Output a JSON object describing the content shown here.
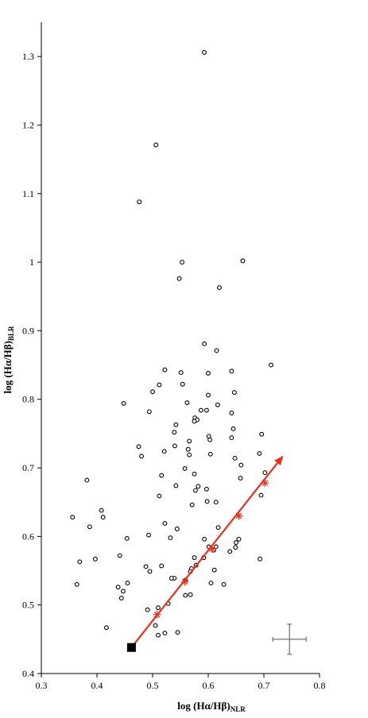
{
  "chart_data": {
    "type": "scatter",
    "xlabel": {
      "main": "log (Hα/Hβ)",
      "sub": "NLR"
    },
    "ylabel": {
      "main": "log (Hα/Hβ)",
      "sub": "BLR"
    },
    "xlim": [
      0.3,
      0.8
    ],
    "ylim": [
      0.4,
      1.35
    ],
    "xticks": [
      "0.3",
      "0.4",
      "0.5",
      "0.6",
      "0.7",
      "0.8"
    ],
    "yticks": [
      "0.4",
      "0.5",
      "0.6",
      "0.7",
      "0.8",
      "0.9",
      "1",
      "1.1",
      "1.2",
      "1.3"
    ],
    "grid": false,
    "series": [
      {
        "marker": "open-circle",
        "color": "#000000",
        "points": [
          [
            0.593,
            1.306
          ],
          [
            0.506,
            1.171
          ],
          [
            0.476,
            1.088
          ],
          [
            0.553,
            1.0
          ],
          [
            0.662,
            1.002
          ],
          [
            0.548,
            0.976
          ],
          [
            0.62,
            0.963
          ],
          [
            0.593,
            0.881
          ],
          [
            0.615,
            0.871
          ],
          [
            0.713,
            0.85
          ],
          [
            0.522,
            0.843
          ],
          [
            0.551,
            0.839
          ],
          [
            0.6,
            0.838
          ],
          [
            0.642,
            0.841
          ],
          [
            0.512,
            0.821
          ],
          [
            0.554,
            0.822
          ],
          [
            0.5,
            0.811
          ],
          [
            0.647,
            0.81
          ],
          [
            0.6,
            0.806
          ],
          [
            0.448,
            0.794
          ],
          [
            0.562,
            0.795
          ],
          [
            0.617,
            0.792
          ],
          [
            0.494,
            0.782
          ],
          [
            0.587,
            0.784
          ],
          [
            0.597,
            0.784
          ],
          [
            0.642,
            0.78
          ],
          [
            0.576,
            0.773
          ],
          [
            0.58,
            0.77
          ],
          [
            0.575,
            0.768
          ],
          [
            0.542,
            0.763
          ],
          [
            0.539,
            0.752
          ],
          [
            0.645,
            0.757
          ],
          [
            0.696,
            0.749
          ],
          [
            0.601,
            0.746
          ],
          [
            0.603,
            0.741
          ],
          [
            0.642,
            0.744
          ],
          [
            0.566,
            0.739
          ],
          [
            0.54,
            0.732
          ],
          [
            0.475,
            0.731
          ],
          [
            0.564,
            0.727
          ],
          [
            0.521,
            0.724
          ],
          [
            0.566,
            0.719
          ],
          [
            0.604,
            0.72
          ],
          [
            0.692,
            0.721
          ],
          [
            0.48,
            0.717
          ],
          [
            0.648,
            0.714
          ],
          [
            0.659,
            0.704
          ],
          [
            0.558,
            0.699
          ],
          [
            0.575,
            0.691
          ],
          [
            0.702,
            0.693
          ],
          [
            0.516,
            0.689
          ],
          [
            0.658,
            0.685
          ],
          [
            0.382,
            0.682
          ],
          [
            0.542,
            0.674
          ],
          [
            0.582,
            0.673
          ],
          [
            0.577,
            0.667
          ],
          [
            0.597,
            0.669
          ],
          [
            0.695,
            0.66
          ],
          [
            0.614,
            0.65
          ],
          [
            0.512,
            0.659
          ],
          [
            0.571,
            0.646
          ],
          [
            0.598,
            0.651
          ],
          [
            0.408,
            0.638
          ],
          [
            0.411,
            0.628
          ],
          [
            0.356,
            0.628
          ],
          [
            0.522,
            0.619
          ],
          [
            0.544,
            0.611
          ],
          [
            0.618,
            0.613
          ],
          [
            0.387,
            0.614
          ],
          [
            0.493,
            0.602
          ],
          [
            0.532,
            0.598
          ],
          [
            0.454,
            0.597
          ],
          [
            0.593,
            0.596
          ],
          [
            0.655,
            0.596
          ],
          [
            0.65,
            0.591
          ],
          [
            0.614,
            0.585
          ],
          [
            0.601,
            0.585
          ],
          [
            0.649,
            0.584
          ],
          [
            0.61,
            0.58
          ],
          [
            0.639,
            0.578
          ],
          [
            0.441,
            0.572
          ],
          [
            0.575,
            0.569
          ],
          [
            0.592,
            0.569
          ],
          [
            0.397,
            0.567
          ],
          [
            0.693,
            0.567
          ],
          [
            0.578,
            0.558
          ],
          [
            0.488,
            0.556
          ],
          [
            0.516,
            0.557
          ],
          [
            0.57,
            0.553
          ],
          [
            0.611,
            0.551
          ],
          [
            0.369,
            0.563
          ],
          [
            0.568,
            0.549
          ],
          [
            0.495,
            0.549
          ],
          [
            0.539,
            0.539
          ],
          [
            0.534,
            0.539
          ],
          [
            0.559,
            0.536
          ],
          [
            0.364,
            0.53
          ],
          [
            0.628,
            0.53
          ],
          [
            0.605,
            0.532
          ],
          [
            0.455,
            0.532
          ],
          [
            0.438,
            0.526
          ],
          [
            0.447,
            0.52
          ],
          [
            0.568,
            0.515
          ],
          [
            0.559,
            0.514
          ],
          [
            0.444,
            0.51
          ],
          [
            0.491,
            0.493
          ],
          [
            0.51,
            0.496
          ],
          [
            0.528,
            0.502
          ],
          [
            0.505,
            0.47
          ],
          [
            0.417,
            0.467
          ],
          [
            0.51,
            0.456
          ],
          [
            0.545,
            0.46
          ],
          [
            0.522,
            0.459
          ]
        ]
      },
      {
        "marker": "filled-square",
        "color": "#000000",
        "points": [
          [
            0.462,
            0.438
          ]
        ]
      },
      {
        "marker": "star",
        "color": "#e8301c",
        "line": "arrow",
        "points": [
          [
            0.462,
            0.438
          ],
          [
            0.508,
            0.486
          ],
          [
            0.558,
            0.534
          ],
          [
            0.607,
            0.582
          ],
          [
            0.655,
            0.63
          ],
          [
            0.702,
            0.678
          ],
          [
            0.735,
            0.718
          ]
        ]
      }
    ],
    "error_bar": {
      "x": 0.746,
      "y": 0.45,
      "x_err": 0.03,
      "y_err": 0.022
    }
  }
}
